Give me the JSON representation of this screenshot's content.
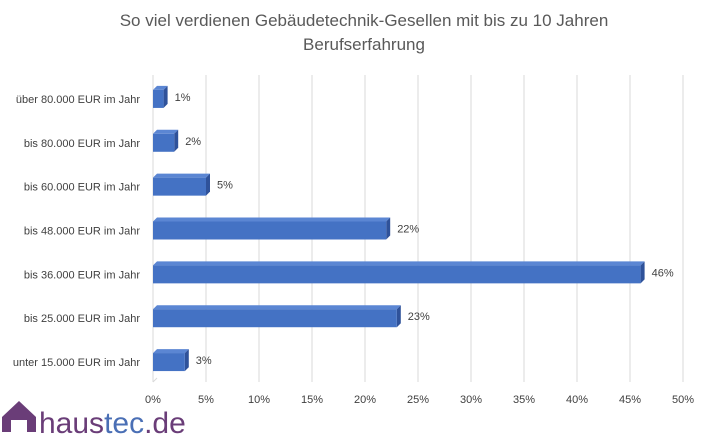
{
  "chart_data": {
    "type": "bar",
    "orientation": "horizontal",
    "style": "3d",
    "title_lines": [
      "So viel verdienen Gebäudetechnik-Gesellen mit bis zu 10 Jahren",
      "Berufserfahrung"
    ],
    "categories": [
      "über 80.000 EUR im Jahr",
      "bis 80.000 EUR im Jahr",
      "bis 60.000 EUR im Jahr",
      "bis 48.000 EUR im Jahr",
      "bis 36.000 EUR im Jahr",
      "bis 25.000 EUR im Jahr",
      "unter 15.000 EUR im Jahr"
    ],
    "values": [
      1,
      2,
      5,
      22,
      46,
      23,
      3
    ],
    "data_labels": [
      "1%",
      "2%",
      "5%",
      "22%",
      "46%",
      "23%",
      "3%"
    ],
    "xlim": [
      0,
      50
    ],
    "x_ticks": [
      0,
      5,
      10,
      15,
      20,
      25,
      30,
      35,
      40,
      45,
      50
    ],
    "x_tick_labels": [
      "0%",
      "5%",
      "10%",
      "15%",
      "20%",
      "25%",
      "30%",
      "35%",
      "40%",
      "45%",
      "50%"
    ],
    "grid": true,
    "xlabel": "",
    "ylabel": ""
  },
  "colors": {
    "bar_front": "#4472c4",
    "bar_top": "#5b86d3",
    "bar_side": "#2f529a",
    "logo_house": "#6a3d78",
    "logo_haus": "#6a3d78",
    "logo_tec": "#4a6fb5"
  },
  "brand": {
    "part1": "haus",
    "part2": "tec",
    "part3": ".de"
  }
}
